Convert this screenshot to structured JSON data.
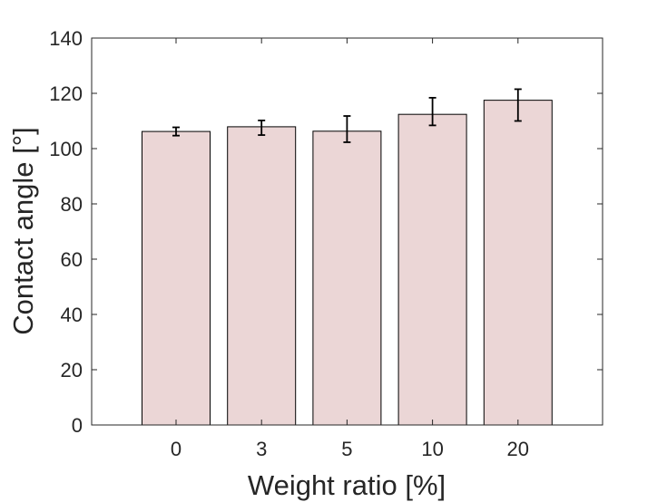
{
  "chart_data": {
    "type": "bar",
    "categories": [
      "0",
      "3",
      "5",
      "10",
      "20"
    ],
    "values": [
      106.2,
      107.9,
      106.3,
      112.4,
      117.5
    ],
    "error_low": [
      1.5,
      3.0,
      4.0,
      4.0,
      7.5
    ],
    "error_high": [
      1.5,
      2.3,
      5.5,
      6.0,
      4.0
    ],
    "xlabel": "Weight ratio [%]",
    "ylabel": "Contact angle [°]",
    "ylim": [
      0,
      140
    ],
    "yticks": [
      "0",
      "20",
      "40",
      "60",
      "80",
      "100",
      "120",
      "140"
    ],
    "grid": false,
    "bar_color": "#ebd6d6",
    "edge_color": "#000000"
  }
}
